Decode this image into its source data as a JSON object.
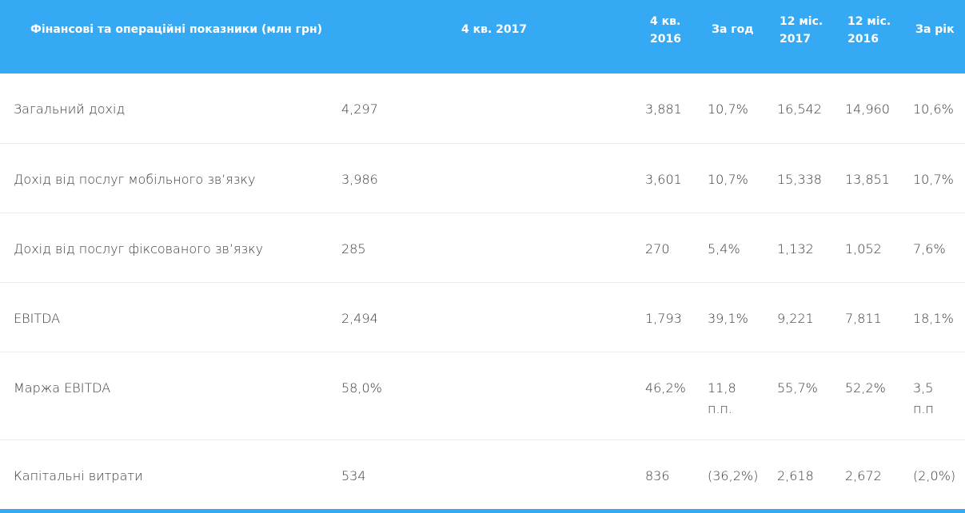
{
  "table": {
    "headers": {
      "indicator": "Фінансові та операційні показники (млн грн)",
      "q4_2017": "4 кв. 2017",
      "q4_2016_line1": "4 кв.",
      "q4_2016_line2": "2016",
      "yoy_q": "За год",
      "m12_2017_line1": "12 міс.",
      "m12_2017_line2": "2017",
      "m12_2016_line1": "12 міс.",
      "m12_2016_line2": "2016",
      "yoy_y": "За рік"
    },
    "rows": [
      {
        "label": "Загальний дохід",
        "q4_2017": "4,297",
        "q4_2016": "3,881",
        "yoy_q": "10,7%",
        "yoy_q_2": "",
        "m12_2017": "16,542",
        "m12_2016": "14,960",
        "yoy_y": "10,6%",
        "yoy_y_2": ""
      },
      {
        "label": "Дохід від послуг мобільного зв’язку",
        "q4_2017": "3,986",
        "q4_2016": "3,601",
        "yoy_q": "10,7%",
        "yoy_q_2": "",
        "m12_2017": "15,338",
        "m12_2016": "13,851",
        "yoy_y": "10,7%",
        "yoy_y_2": ""
      },
      {
        "label": "Дохід від послуг фіксованого зв’язку",
        "q4_2017": "285",
        "q4_2016": "270",
        "yoy_q": "5,4%",
        "yoy_q_2": "",
        "m12_2017": "1,132",
        "m12_2016": "1,052",
        "yoy_y": "7,6%",
        "yoy_y_2": ""
      },
      {
        "label": "EBITDA",
        "q4_2017": "2,494",
        "q4_2016": "1,793",
        "yoy_q": "39,1%",
        "yoy_q_2": "",
        "m12_2017": "9,221",
        "m12_2016": "7,811",
        "yoy_y": "18,1%",
        "yoy_y_2": ""
      },
      {
        "label": "Маржа EBITDA",
        "q4_2017": "58,0%",
        "q4_2016": "46,2%",
        "yoy_q": "11,8",
        "yoy_q_2": "п.п.",
        "m12_2017": "55,7%",
        "m12_2016": "52,2%",
        "yoy_y": "3,5",
        "yoy_y_2": "п.п"
      },
      {
        "label": "Капітальні витрати",
        "q4_2017": "534",
        "q4_2016": "836",
        "yoy_q": "(36,2%)",
        "yoy_q_2": "",
        "m12_2017": "2,618",
        "m12_2016": "2,672",
        "yoy_y": "(2,0%)",
        "yoy_y_2": ""
      }
    ]
  },
  "colors": {
    "header_bg": "#36a9f5",
    "header_text": "#ffffff",
    "body_text": "#3a3a3a",
    "divider": "#ececec"
  }
}
